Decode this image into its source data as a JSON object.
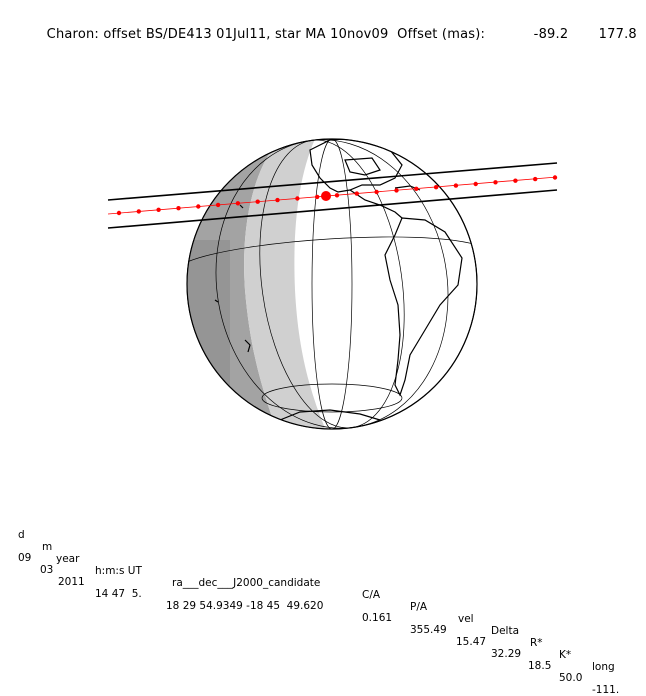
{
  "title": {
    "prefix": "Charon: offset BS/DE413 01Jul11, star MA 10nov09  Offset (mas):",
    "offset_ra": "-89.2",
    "offset_dec": "177.8"
  },
  "colors": {
    "path_lines": "#000000",
    "path_dots": "#ff0000",
    "night_dark": "#a0a0a0",
    "twilight": "#cfcfcf",
    "day": "#ffffff",
    "coastline": "#000000"
  },
  "table": {
    "headers": [
      "d",
      "m",
      "year",
      "h:m:s UT",
      "ra___dec___J2000_candidate",
      "C/A",
      "P/A",
      "vel",
      "Delta",
      "R*",
      "K*",
      "long"
    ],
    "values": [
      "09",
      "03",
      "2011",
      "14 47  5.",
      "18 29 54.9349 -18 45  49.620",
      "0.161",
      "355.49",
      "15.47",
      "32.29",
      "18.5",
      "50.0",
      "-111."
    ]
  }
}
